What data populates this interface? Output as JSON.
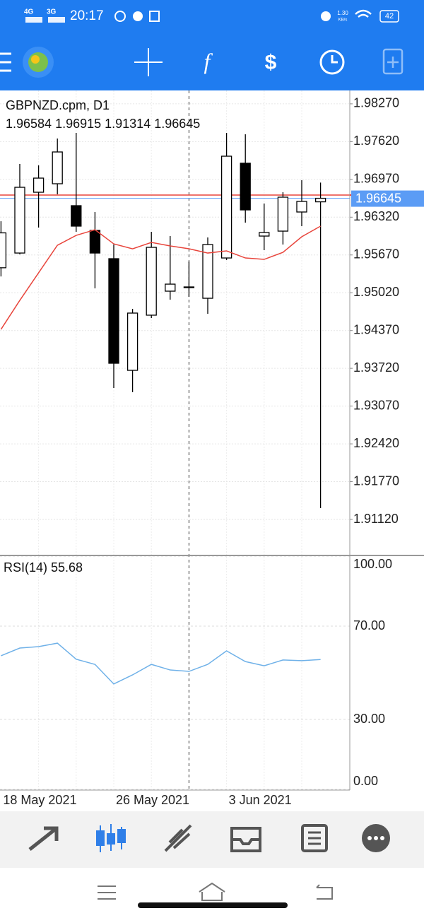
{
  "status_bar": {
    "network_1": "4G",
    "network_2": "3G",
    "time": "20:17",
    "speed_value": "1.30",
    "speed_unit": "KB/s",
    "battery": "42"
  },
  "chart_data": {
    "type": "candlestick",
    "title": "GBPNZD.cpm, D1",
    "subtitle": "1.96584 1.96915 1.91314 1.96645",
    "categories": [
      "18 May 2021",
      null,
      null,
      null,
      null,
      null,
      "26 May 2021",
      null,
      null,
      null,
      null,
      null,
      "3 Jun 2021",
      null,
      null,
      null,
      null,
      null
    ],
    "open": [
      1.9545,
      1.95703,
      1.96749,
      1.96895,
      1.96518,
      1.96093,
      1.95606,
      1.93685,
      1.94634,
      1.95047,
      1.9512,
      1.94925,
      1.95618,
      1.97248,
      1.95995,
      1.9608,
      1.96409,
      1.96584
    ],
    "high": [
      1.9625,
      1.97236,
      1.97211,
      1.97673,
      1.9777,
      1.96409,
      1.95849,
      1.94743,
      1.96068,
      1.95995,
      1.95557,
      1.95971,
      1.9777,
      1.97746,
      1.96555,
      1.96749,
      1.96956,
      1.96915
    ],
    "low": [
      1.953,
      1.95679,
      1.96141,
      1.96713,
      1.96068,
      1.95095,
      1.93381,
      1.93309,
      1.94585,
      1.94901,
      1.94949,
      1.94658,
      1.95582,
      1.96226,
      1.95752,
      1.95849,
      1.96166,
      1.91314
    ],
    "close": [
      1.9605,
      1.96834,
      1.96992,
      1.97442,
      1.96166,
      1.95703,
      1.93807,
      1.9467,
      1.95801,
      1.95168,
      1.9512,
      1.95849,
      1.97369,
      1.96445,
      1.96056,
      1.96664,
      1.96591,
      1.96645
    ],
    "up_color": "#ffffff",
    "down_color": "#000000",
    "ma": {
      "color": "#e8453c",
      "values": [
        1.9439,
        1.94888,
        1.95363,
        1.95837,
        1.96007,
        1.96104,
        1.95861,
        1.95776,
        1.95886,
        1.95825,
        1.95776,
        1.95703,
        1.9574,
        1.95618,
        1.95594,
        1.95715,
        1.95983,
        1.96166
      ]
    },
    "bid_line": {
      "value": 1.96645,
      "label": "1.96645",
      "color": "#5b9cf5"
    },
    "ask_line": {
      "value": 1.967,
      "color": "#e8453c"
    },
    "ylim": [
      1.905,
      1.985
    ],
    "yticks": [
      {
        "value": 1.9827,
        "label": "1.98270"
      },
      {
        "value": 1.9762,
        "label": "1.97620"
      },
      {
        "value": 1.9697,
        "label": "1.96970"
      },
      {
        "value": 1.9632,
        "label": "1.96320"
      },
      {
        "value": 1.9567,
        "label": "1.95670"
      },
      {
        "value": 1.9502,
        "label": "1.95020"
      },
      {
        "value": 1.9437,
        "label": "1.94370"
      },
      {
        "value": 1.9372,
        "label": "1.93720"
      },
      {
        "value": 1.9307,
        "label": "1.93070"
      },
      {
        "value": 1.9242,
        "label": "1.92420"
      },
      {
        "value": 1.9177,
        "label": "1.91770"
      },
      {
        "value": 1.9112,
        "label": "1.91120"
      }
    ],
    "grid": true,
    "rsi": {
      "title": "RSI(14) 55.68",
      "color": "#6fb1e8",
      "values": [
        57.3,
        60.6,
        61.2,
        62.7,
        55.8,
        53.6,
        45.2,
        49.1,
        53.6,
        51.2,
        50.6,
        53.6,
        59.4,
        54.8,
        53.0,
        55.5,
        55.2,
        55.68
      ],
      "ylim": [
        0,
        100
      ],
      "yticks": [
        {
          "value": 100,
          "label": "100.00"
        },
        {
          "value": 70,
          "label": "70.00"
        },
        {
          "value": 30,
          "label": "30.00"
        },
        {
          "value": 0,
          "label": "0.00"
        }
      ]
    }
  }
}
